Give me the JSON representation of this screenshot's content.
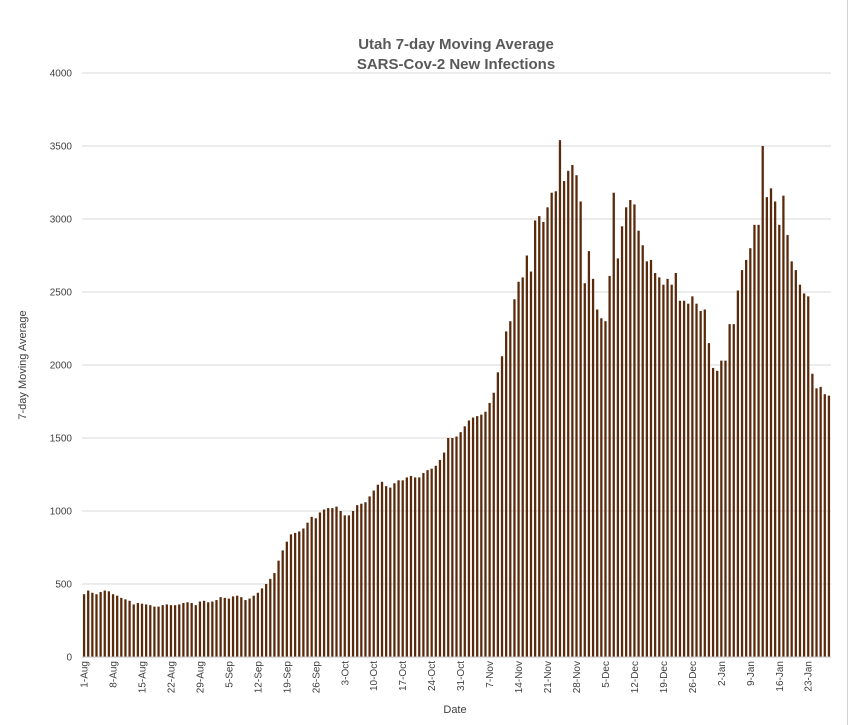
{
  "chart_data": {
    "type": "bar",
    "title": "Utah 7-day Moving Average",
    "subtitle": "SARS-Cov-2 New Infections",
    "xlabel": "Date",
    "ylabel": "7-day Moving Average",
    "ylim": [
      0,
      4000
    ],
    "yticks": [
      0,
      500,
      1000,
      1500,
      2000,
      2500,
      3000,
      3500,
      4000
    ],
    "grid": true,
    "legend": "none",
    "bar_color": "#5a2a0c",
    "grid_color": "#d9d9d9",
    "x_tick_labels": [
      {
        "index": 0,
        "label": "1-Aug"
      },
      {
        "index": 7,
        "label": "8-Aug"
      },
      {
        "index": 14,
        "label": "15-Aug"
      },
      {
        "index": 21,
        "label": "22-Aug"
      },
      {
        "index": 28,
        "label": "29-Aug"
      },
      {
        "index": 35,
        "label": "5-Sep"
      },
      {
        "index": 42,
        "label": "12-Sep"
      },
      {
        "index": 49,
        "label": "19-Sep"
      },
      {
        "index": 56,
        "label": "26-Sep"
      },
      {
        "index": 63,
        "label": "3-Oct"
      },
      {
        "index": 70,
        "label": "10-Oct"
      },
      {
        "index": 77,
        "label": "17-Oct"
      },
      {
        "index": 84,
        "label": "24-Oct"
      },
      {
        "index": 91,
        "label": "31-Oct"
      },
      {
        "index": 98,
        "label": "7-Nov"
      },
      {
        "index": 105,
        "label": "14-Nov"
      },
      {
        "index": 112,
        "label": "21-Nov"
      },
      {
        "index": 119,
        "label": "28-Nov"
      },
      {
        "index": 126,
        "label": "5-Dec"
      },
      {
        "index": 133,
        "label": "12-Dec"
      },
      {
        "index": 140,
        "label": "19-Dec"
      },
      {
        "index": 147,
        "label": "26-Dec"
      },
      {
        "index": 154,
        "label": "2-Jan"
      },
      {
        "index": 161,
        "label": "9-Jan"
      },
      {
        "index": 168,
        "label": "16-Jan"
      },
      {
        "index": 175,
        "label": "23-Jan"
      }
    ],
    "values": [
      430,
      455,
      440,
      430,
      445,
      455,
      450,
      430,
      420,
      405,
      395,
      385,
      360,
      370,
      365,
      360,
      355,
      345,
      345,
      355,
      360,
      355,
      355,
      360,
      370,
      375,
      370,
      355,
      380,
      385,
      375,
      380,
      390,
      410,
      405,
      400,
      415,
      420,
      410,
      390,
      400,
      420,
      440,
      470,
      500,
      535,
      575,
      660,
      730,
      790,
      840,
      850,
      860,
      880,
      920,
      960,
      950,
      990,
      1010,
      1020,
      1020,
      1030,
      1000,
      970,
      970,
      1000,
      1040,
      1050,
      1060,
      1100,
      1140,
      1180,
      1200,
      1170,
      1160,
      1190,
      1210,
      1210,
      1230,
      1240,
      1230,
      1230,
      1260,
      1280,
      1290,
      1310,
      1350,
      1400,
      1500,
      1500,
      1510,
      1540,
      1580,
      1620,
      1640,
      1650,
      1660,
      1680,
      1740,
      1810,
      1950,
      2060,
      2230,
      2300,
      2450,
      2570,
      2600,
      2750,
      2640,
      2990,
      3020,
      2980,
      3080,
      3180,
      3190,
      3540,
      3260,
      3330,
      3370,
      3300,
      3120,
      2560,
      2780,
      2590,
      2380,
      2320,
      2300,
      2610,
      3180,
      2730,
      2950,
      3080,
      3130,
      3100,
      2920,
      2820,
      2710,
      2720,
      2630,
      2600,
      2550,
      2590,
      2550,
      2630,
      2440,
      2440,
      2420,
      2470,
      2420,
      2370,
      2380,
      2150,
      1980,
      1960,
      2030,
      2030,
      2280,
      2280,
      2510,
      2650,
      2720,
      2800,
      2960,
      2960,
      3500,
      3150,
      3210,
      3120,
      2960,
      3160,
      2890,
      2710,
      2650,
      2550,
      2490,
      2470,
      1940,
      1840,
      1850,
      1800,
      1790
    ]
  }
}
